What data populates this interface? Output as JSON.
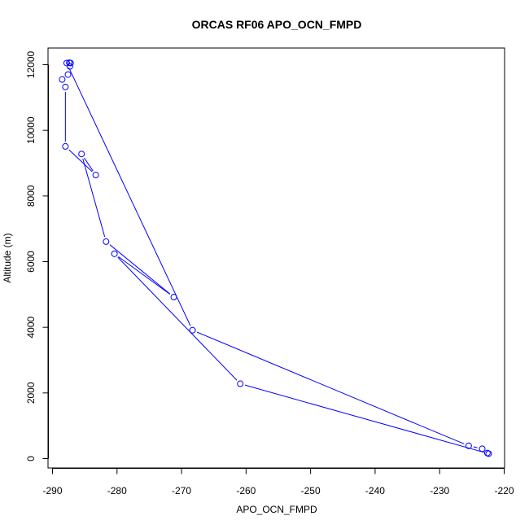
{
  "chart_data": {
    "type": "line",
    "title": "ORCAS RF06 APO_OCN_FMPD",
    "xlabel": "APO_OCN_FMPD",
    "ylabel": "Altitude (m)",
    "xlim": [
      -290,
      -220
    ],
    "ylim": [
      0,
      12000
    ],
    "x_ticks": [
      -290,
      -280,
      -270,
      -260,
      -250,
      -240,
      -230,
      -220
    ],
    "y_ticks": [
      0,
      2000,
      4000,
      6000,
      8000,
      10000,
      12000
    ],
    "grid": false,
    "legend": "none",
    "series": [
      {
        "color": "#0000ff",
        "marker": "open-circle",
        "points": [
          {
            "x": -287.4,
            "y": 12060
          },
          {
            "x": -287.2,
            "y": 12050
          },
          {
            "x": -287.3,
            "y": 11950
          },
          {
            "x": -287.6,
            "y": 11700
          },
          {
            "x": -288.5,
            "y": 11550
          },
          {
            "x": -288.0,
            "y": 11320
          },
          {
            "x": -288.0,
            "y": 9510
          },
          {
            "x": -283.3,
            "y": 8640
          },
          {
            "x": -285.5,
            "y": 9280
          },
          {
            "x": -281.7,
            "y": 6610
          },
          {
            "x": -271.2,
            "y": 4920
          },
          {
            "x": -280.4,
            "y": 6240
          },
          {
            "x": -260.9,
            "y": 2280
          },
          {
            "x": -222.4,
            "y": 150
          },
          {
            "x": -222.6,
            "y": 170
          },
          {
            "x": -223.4,
            "y": 300
          },
          {
            "x": -225.5,
            "y": 390
          },
          {
            "x": -268.3,
            "y": 3910
          },
          {
            "x": -287.8,
            "y": 12050
          }
        ]
      }
    ]
  }
}
